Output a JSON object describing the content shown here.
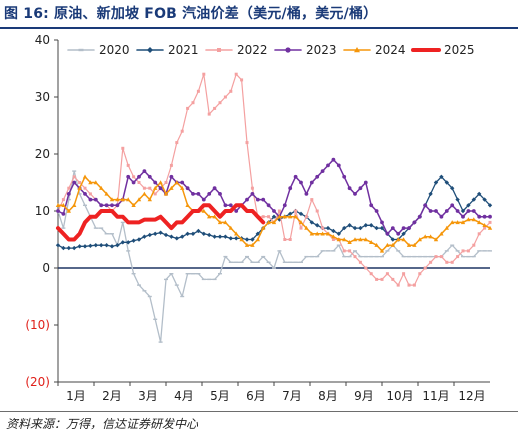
{
  "title": "图 16:  原油、新加坡 FOB 汽油价差（美元/桶，美元/桶）",
  "source": "资料来源：万得，信达证券研发中心",
  "chart_data": {
    "type": "line",
    "xlabel": "",
    "ylabel": "",
    "ylim": [
      -20,
      40
    ],
    "yticks": [
      {
        "v": 40,
        "label": "40",
        "color": "#222222"
      },
      {
        "v": 30,
        "label": "30",
        "color": "#222222"
      },
      {
        "v": 20,
        "label": "20",
        "color": "#222222"
      },
      {
        "v": 10,
        "label": "10",
        "color": "#222222"
      },
      {
        "v": 0,
        "label": "0",
        "color": "#222222"
      },
      {
        "v": -10,
        "label": "(10)",
        "color": "#e0201a"
      },
      {
        "v": -20,
        "label": "(20)",
        "color": "#e0201a"
      }
    ],
    "xticks": [
      "1月",
      "2月",
      "3月",
      "4月",
      "5月",
      "6月",
      "7月",
      "8月",
      "9月",
      "10月",
      "11月",
      "12月"
    ],
    "grid": false,
    "legend_position": "top",
    "series": [
      {
        "name": "2020",
        "color": "#b3bec9",
        "width": 1.3,
        "marker": "dash",
        "x": [
          1,
          1.15,
          1.3,
          1.45,
          1.6,
          1.75,
          1.9,
          2.05,
          2.2,
          2.35,
          2.5,
          2.65,
          2.8,
          2.95,
          3.1,
          3.25,
          3.4,
          3.55,
          3.7,
          3.85,
          4.0,
          4.15,
          4.3,
          4.45,
          4.6,
          4.75,
          4.9,
          5.05,
          5.2,
          5.35,
          5.5,
          5.65,
          5.8,
          5.95,
          6.1,
          6.25,
          6.4,
          6.55,
          6.7,
          6.85,
          7.0,
          7.15,
          7.3,
          7.45,
          7.6,
          7.75,
          7.9,
          8.05,
          8.2,
          8.35,
          8.5,
          8.65,
          8.8,
          8.95,
          9.1,
          9.25,
          9.4,
          9.55,
          9.7,
          9.85,
          10.0,
          10.15,
          10.3,
          10.45,
          10.6,
          10.75,
          10.9,
          11.05,
          11.2,
          11.35,
          11.5,
          11.65,
          11.8,
          11.95,
          12.1,
          12.25,
          12.4,
          12.55,
          12.7,
          12.85,
          13.0
        ],
        "y": [
          10,
          7,
          12,
          17,
          13,
          11,
          9,
          7,
          7,
          6,
          6,
          4,
          8,
          3,
          -1,
          -3,
          -4,
          -5,
          -9,
          -13,
          -2,
          -1,
          -3,
          -5,
          -1,
          -1,
          -1,
          -2,
          -2,
          -2,
          -1,
          2,
          1,
          1,
          1,
          2,
          1,
          1,
          2,
          1,
          0,
          3,
          1,
          1,
          1,
          1,
          2,
          2,
          2,
          3,
          3,
          3,
          4,
          2,
          2,
          3,
          2,
          2,
          2,
          2,
          2,
          3,
          4,
          3,
          2,
          2,
          2,
          2,
          2,
          2,
          2,
          2,
          3,
          4,
          3,
          2,
          2,
          2,
          3,
          3,
          3
        ]
      },
      {
        "name": "2021",
        "color": "#1f4e79",
        "width": 1.3,
        "marker": "diamond",
        "x": [
          1,
          1.15,
          1.3,
          1.45,
          1.6,
          1.75,
          1.9,
          2.05,
          2.2,
          2.35,
          2.5,
          2.65,
          2.8,
          2.95,
          3.1,
          3.25,
          3.4,
          3.55,
          3.7,
          3.85,
          4.0,
          4.15,
          4.3,
          4.45,
          4.6,
          4.75,
          4.9,
          5.05,
          5.2,
          5.35,
          5.5,
          5.65,
          5.8,
          5.95,
          6.1,
          6.25,
          6.4,
          6.55,
          6.7,
          6.85,
          7.0,
          7.15,
          7.3,
          7.45,
          7.6,
          7.75,
          7.9,
          8.05,
          8.2,
          8.35,
          8.5,
          8.65,
          8.8,
          8.95,
          9.1,
          9.25,
          9.4,
          9.55,
          9.7,
          9.85,
          10.0,
          10.15,
          10.3,
          10.45,
          10.6,
          10.75,
          10.9,
          11.05,
          11.2,
          11.35,
          11.5,
          11.65,
          11.8,
          11.95,
          12.1,
          12.25,
          12.4,
          12.55,
          12.7,
          12.85,
          13.0
        ],
        "y": [
          4,
          3.5,
          3.5,
          3.5,
          3.8,
          3.8,
          3.9,
          4,
          4,
          4,
          3.8,
          4,
          4.5,
          4.5,
          4.8,
          5,
          5.5,
          5.8,
          6,
          6.2,
          5.8,
          5.5,
          5.2,
          5.5,
          6,
          6,
          6.5,
          6,
          5.8,
          5.5,
          5.5,
          5.5,
          5.2,
          5.2,
          5.2,
          5,
          5,
          6,
          7,
          8,
          9,
          8.5,
          9,
          9.5,
          10,
          9.5,
          9,
          8,
          7.5,
          7,
          7,
          6.5,
          6,
          7,
          7.5,
          7,
          7,
          7.5,
          7.5,
          7,
          7,
          6,
          5,
          5,
          6,
          7,
          8,
          9,
          11,
          13,
          15,
          16,
          15,
          14,
          12,
          10,
          11,
          12,
          13,
          12,
          11
        ]
      },
      {
        "name": "2022",
        "color": "#f4a0a0",
        "width": 1.2,
        "marker": "square",
        "x": [
          1,
          1.15,
          1.3,
          1.45,
          1.6,
          1.75,
          1.9,
          2.05,
          2.2,
          2.35,
          2.5,
          2.65,
          2.8,
          2.95,
          3.1,
          3.25,
          3.4,
          3.55,
          3.7,
          3.85,
          4.0,
          4.15,
          4.3,
          4.45,
          4.6,
          4.75,
          4.9,
          5.05,
          5.2,
          5.35,
          5.5,
          5.65,
          5.8,
          5.95,
          6.1,
          6.25,
          6.4,
          6.55,
          6.7,
          6.85,
          7.0,
          7.15,
          7.3,
          7.45,
          7.6,
          7.75,
          7.9,
          8.05,
          8.2,
          8.35,
          8.5,
          8.65,
          8.8,
          8.95,
          9.1,
          9.25,
          9.4,
          9.55,
          9.7,
          9.85,
          10.0,
          10.15,
          10.3,
          10.45,
          10.6,
          10.75,
          10.9,
          11.05,
          11.2,
          11.35,
          11.5,
          11.65,
          11.8,
          11.95,
          12.1,
          12.25,
          12.4,
          12.55,
          12.7,
          12.85,
          13.0
        ],
        "y": [
          10,
          12,
          14,
          16,
          15,
          14,
          13,
          12,
          11,
          11,
          10,
          11,
          21,
          18,
          16,
          15,
          14,
          14,
          13,
          14,
          15,
          18,
          22,
          24,
          28,
          29,
          31,
          34,
          27,
          28,
          29,
          30,
          31,
          34,
          33,
          22,
          14,
          9,
          9,
          9,
          8,
          10,
          5,
          5,
          10,
          7,
          9,
          12,
          10,
          7,
          6,
          5,
          5,
          3,
          3,
          2,
          1,
          0,
          -1,
          -2,
          -2,
          -1,
          -2,
          -3,
          -1,
          -3,
          -3,
          -1,
          0,
          1,
          2,
          2,
          1,
          1,
          2,
          3,
          3,
          4,
          6,
          7,
          8
        ]
      },
      {
        "name": "2023",
        "color": "#7030a0",
        "width": 1.5,
        "marker": "circle",
        "x": [
          1,
          1.15,
          1.3,
          1.45,
          1.6,
          1.75,
          1.9,
          2.05,
          2.2,
          2.35,
          2.5,
          2.65,
          2.8,
          2.95,
          3.1,
          3.25,
          3.4,
          3.55,
          3.7,
          3.85,
          4.0,
          4.15,
          4.3,
          4.45,
          4.6,
          4.75,
          4.9,
          5.05,
          5.2,
          5.35,
          5.5,
          5.65,
          5.8,
          5.95,
          6.1,
          6.25,
          6.4,
          6.55,
          6.7,
          6.85,
          7.0,
          7.15,
          7.3,
          7.45,
          7.6,
          7.75,
          7.9,
          8.05,
          8.2,
          8.35,
          8.5,
          8.65,
          8.8,
          8.95,
          9.1,
          9.25,
          9.4,
          9.55,
          9.7,
          9.85,
          10.0,
          10.15,
          10.3,
          10.45,
          10.6,
          10.75,
          10.9,
          11.05,
          11.2,
          11.35,
          11.5,
          11.65,
          11.8,
          11.95,
          12.1,
          12.25,
          12.4,
          12.55,
          12.7,
          12.85,
          13.0
        ],
        "y": [
          10,
          9.5,
          13,
          15,
          14,
          13,
          12,
          12,
          11,
          11,
          11,
          11,
          12,
          16,
          15,
          16,
          17,
          16,
          15,
          14,
          13,
          16,
          15,
          15,
          14,
          13,
          13,
          12,
          13,
          14,
          13,
          11,
          11,
          10,
          11,
          12,
          13,
          12,
          12,
          11,
          10,
          9,
          11,
          14,
          16,
          15,
          13,
          15,
          16,
          17,
          18,
          19,
          18,
          16,
          14,
          13,
          14,
          15,
          11,
          10,
          8,
          6,
          7,
          6,
          7,
          7,
          8,
          9,
          11,
          10,
          10,
          9,
          10,
          11,
          10,
          9,
          10,
          10,
          9,
          9,
          9
        ]
      },
      {
        "name": "2024",
        "color": "#f5960a",
        "width": 1.5,
        "marker": "triangle",
        "x": [
          1,
          1.15,
          1.3,
          1.45,
          1.6,
          1.75,
          1.9,
          2.05,
          2.2,
          2.35,
          2.5,
          2.65,
          2.8,
          2.95,
          3.1,
          3.25,
          3.4,
          3.55,
          3.7,
          3.85,
          4.0,
          4.15,
          4.3,
          4.45,
          4.6,
          4.75,
          4.9,
          5.05,
          5.2,
          5.35,
          5.5,
          5.65,
          5.8,
          5.95,
          6.1,
          6.25,
          6.4,
          6.55,
          6.7,
          6.85,
          7.0,
          7.15,
          7.3,
          7.45,
          7.6,
          7.75,
          7.9,
          8.05,
          8.2,
          8.35,
          8.5,
          8.65,
          8.8,
          8.95,
          9.1,
          9.25,
          9.4,
          9.55,
          9.7,
          9.85,
          10.0,
          10.15,
          10.3,
          10.45,
          10.6,
          10.75,
          10.9,
          11.05,
          11.2,
          11.35,
          11.5,
          11.65,
          11.8,
          11.95,
          12.1,
          12.25,
          12.4,
          12.55,
          12.7,
          12.85,
          13.0
        ],
        "y": [
          11,
          11,
          10,
          11,
          14,
          16,
          15,
          15,
          14,
          13,
          12,
          12,
          12,
          12,
          11,
          12,
          13,
          12,
          14,
          15,
          13,
          14,
          15,
          14,
          11,
          10,
          10,
          10,
          9,
          9,
          8,
          8,
          7,
          6,
          5,
          4,
          4,
          5,
          7,
          8,
          8,
          9,
          9,
          9,
          9,
          8,
          7,
          6,
          6,
          6,
          6,
          5.5,
          5,
          5,
          4.5,
          5,
          5,
          5,
          4.5,
          4,
          3,
          4,
          4,
          5,
          5,
          4,
          4,
          5,
          5.5,
          5.5,
          5,
          6,
          7,
          8,
          8,
          8,
          8.5,
          8.5,
          8,
          7.5,
          7
        ]
      },
      {
        "name": "2025",
        "color": "#ee2222",
        "width": 4,
        "marker": "line",
        "x": [
          1,
          1.15,
          1.3,
          1.45,
          1.6,
          1.75,
          1.9,
          2.05,
          2.2,
          2.35,
          2.5,
          2.65,
          2.8,
          2.95,
          3.1,
          3.25,
          3.4,
          3.55,
          3.7,
          3.85,
          4.0,
          4.15,
          4.3,
          4.45,
          4.6,
          4.75,
          4.9,
          5.05,
          5.2,
          5.35,
          5.5,
          5.65,
          5.8,
          5.95,
          6.1,
          6.25,
          6.4,
          6.55,
          6.7
        ],
        "y": [
          7,
          6,
          5,
          5,
          6,
          8,
          9,
          9,
          10,
          10,
          10,
          9,
          9,
          8,
          8,
          8,
          8.5,
          8.5,
          8.5,
          9,
          8,
          7,
          8,
          8,
          9,
          10,
          10,
          11,
          11,
          10,
          9,
          10,
          10,
          11,
          11,
          10,
          10,
          9,
          8
        ]
      }
    ]
  }
}
